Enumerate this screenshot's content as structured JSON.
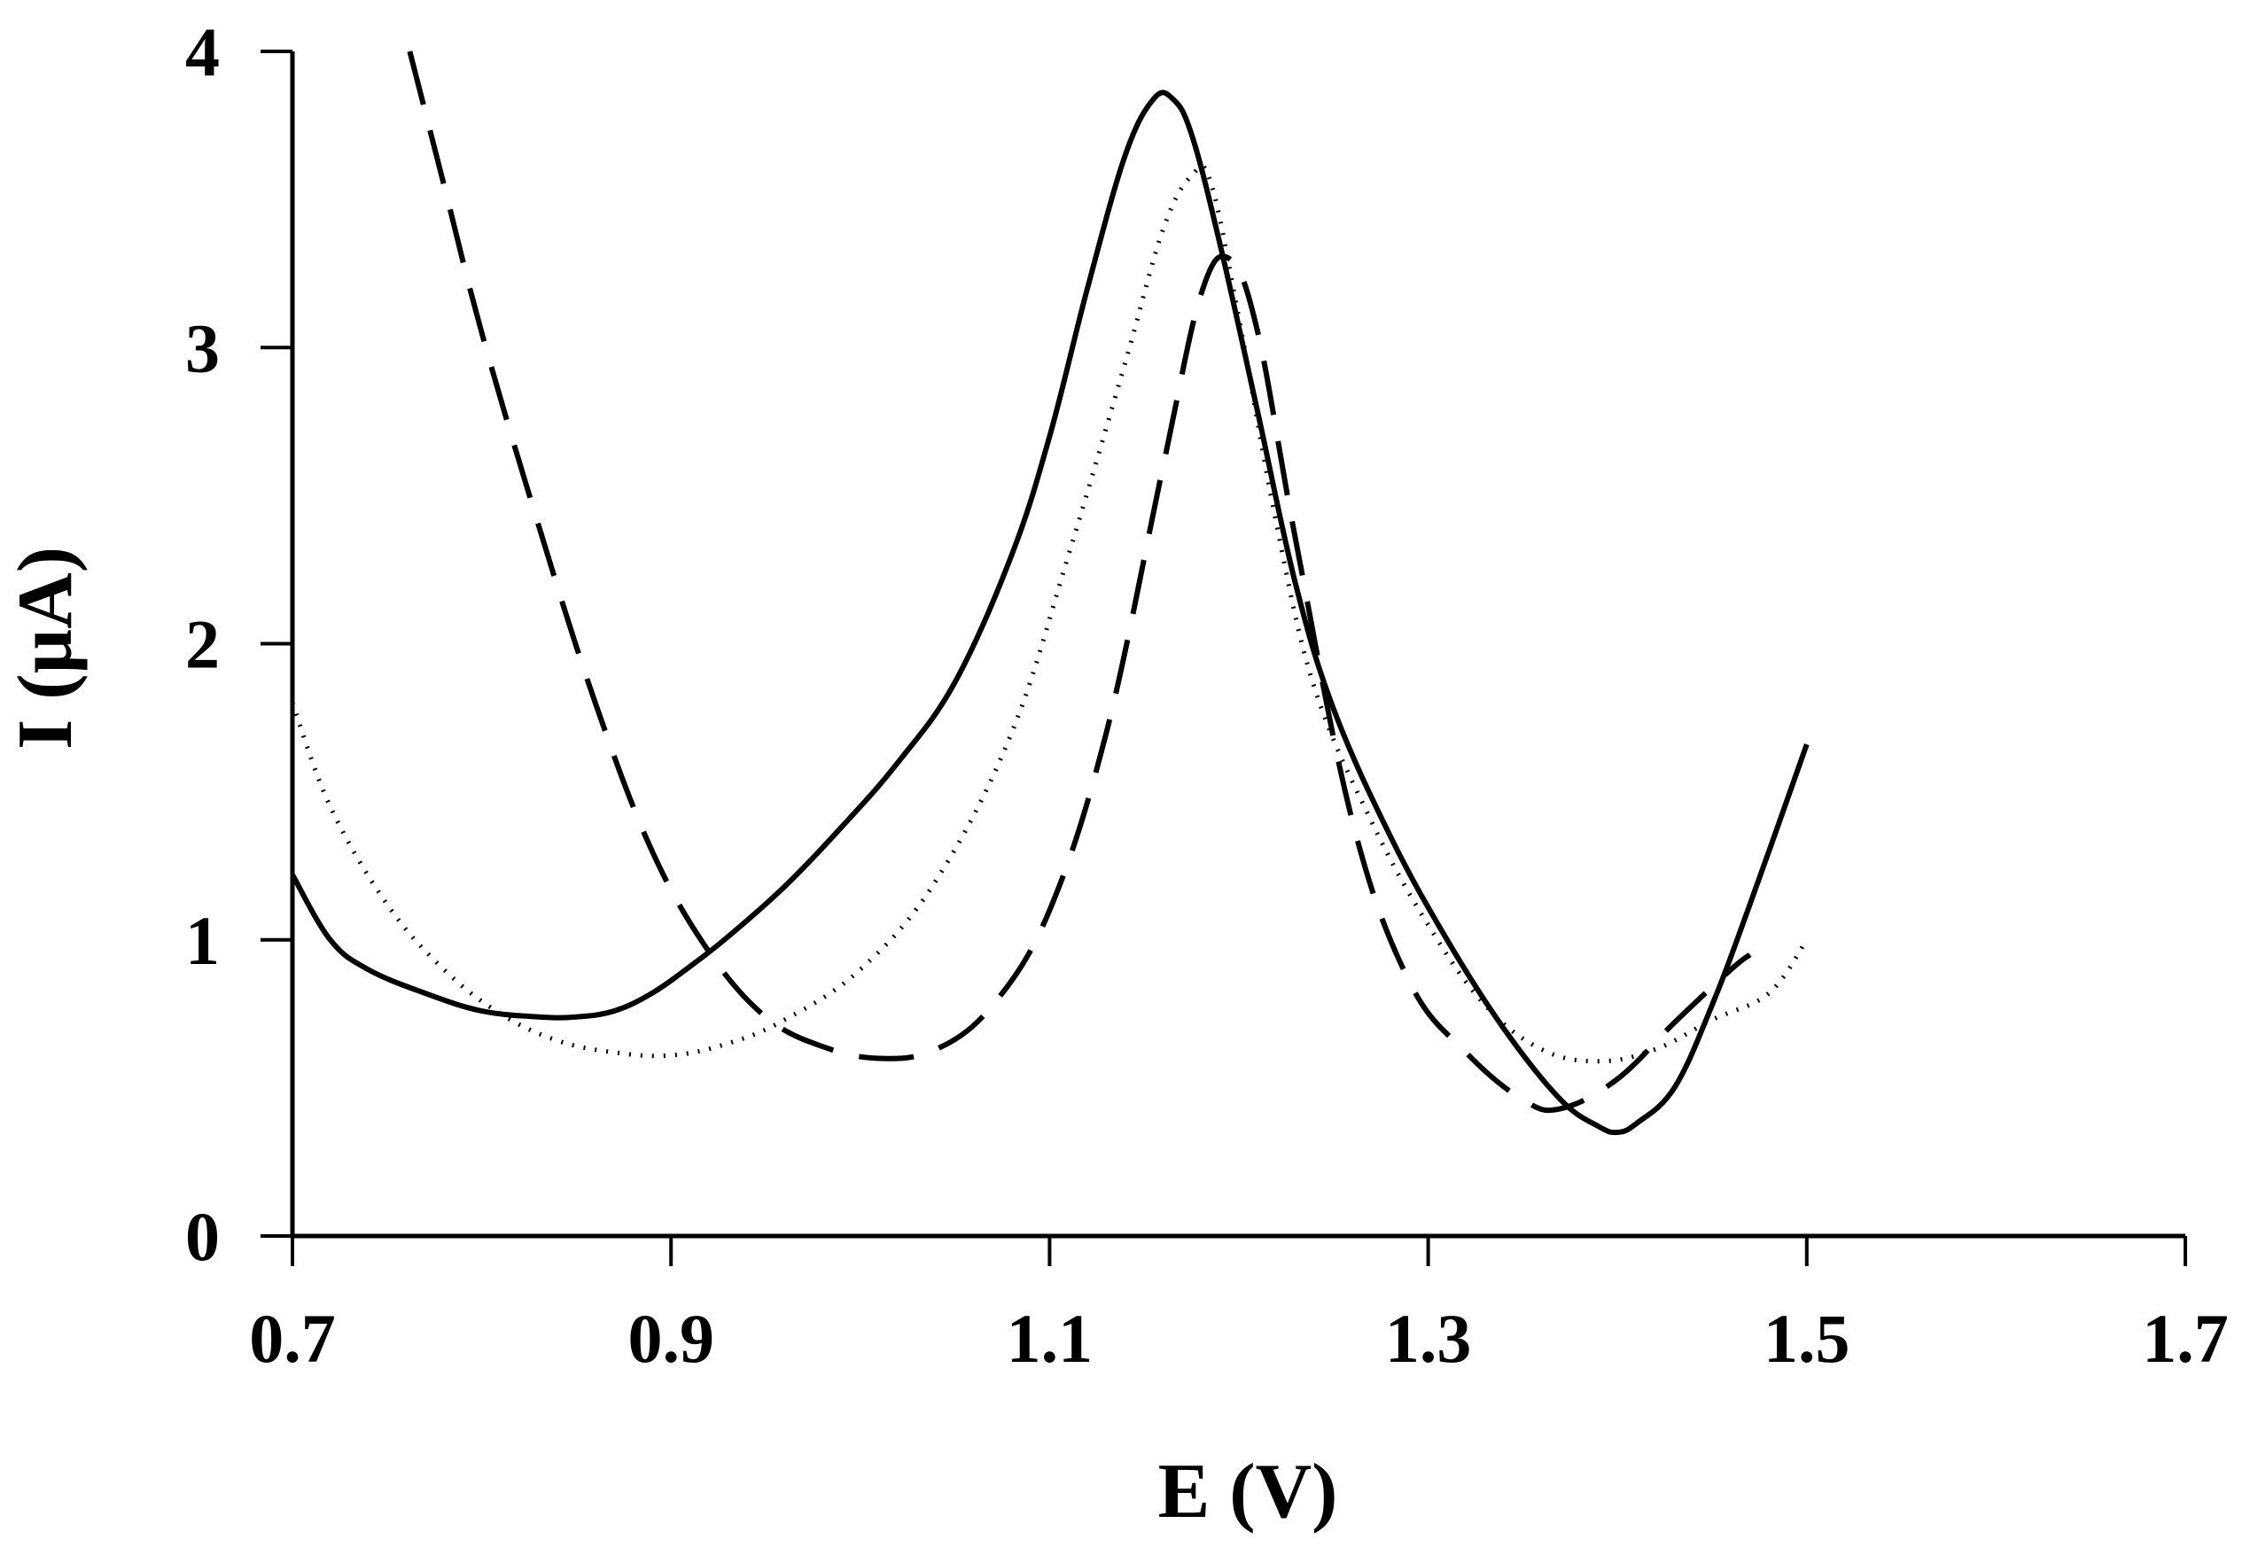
{
  "chart_data": {
    "type": "line",
    "title": "",
    "xlabel": "E (V)",
    "ylabel": "I (µA)",
    "xlim": [
      0.7,
      1.7
    ],
    "ylim": [
      0,
      4
    ],
    "xticks": [
      0.7,
      0.9,
      1.1,
      1.3,
      1.5,
      1.7
    ],
    "xtick_labels": [
      "0.7",
      "0.9",
      "1.1",
      "1.3",
      "1.5",
      "1.7"
    ],
    "yticks": [
      0,
      1,
      2,
      3,
      4
    ],
    "ytick_labels": [
      "0",
      "1",
      "2",
      "3",
      "4"
    ],
    "grid": false,
    "legend": "none",
    "series": [
      {
        "name": "solid",
        "style": "solid",
        "color": "#000000",
        "x": [
          0.7,
          0.72,
          0.74,
          0.77,
          0.8,
          0.83,
          0.85,
          0.87,
          0.89,
          0.91,
          0.93,
          0.96,
          0.99,
          1.02,
          1.05,
          1.08,
          1.1,
          1.12,
          1.14,
          1.155,
          1.165,
          1.175,
          1.19,
          1.21,
          1.23,
          1.25,
          1.28,
          1.31,
          1.34,
          1.37,
          1.39,
          1.4,
          1.41,
          1.43,
          1.45,
          1.47,
          1.5
        ],
        "y": [
          1.22,
          1.0,
          0.9,
          0.82,
          0.76,
          0.74,
          0.74,
          0.76,
          0.82,
          0.91,
          1.01,
          1.18,
          1.38,
          1.6,
          1.87,
          2.3,
          2.7,
          3.2,
          3.65,
          3.84,
          3.84,
          3.72,
          3.35,
          2.78,
          2.2,
          1.78,
          1.35,
          1.0,
          0.7,
          0.46,
          0.37,
          0.35,
          0.38,
          0.5,
          0.78,
          1.12,
          1.66
        ]
      },
      {
        "name": "dotted",
        "style": "dotted",
        "color": "#000000",
        "x": [
          0.7,
          0.72,
          0.75,
          0.78,
          0.81,
          0.84,
          0.87,
          0.9,
          0.93,
          0.96,
          1.0,
          1.04,
          1.08,
          1.11,
          1.14,
          1.16,
          1.175,
          1.185,
          1.2,
          1.22,
          1.24,
          1.27,
          1.3,
          1.33,
          1.36,
          1.39,
          1.42,
          1.45,
          1.48,
          1.5
        ],
        "y": [
          1.8,
          1.45,
          1.12,
          0.9,
          0.75,
          0.66,
          0.62,
          0.61,
          0.65,
          0.73,
          0.9,
          1.2,
          1.7,
          2.3,
          2.95,
          3.4,
          3.58,
          3.56,
          3.1,
          2.4,
          1.85,
          1.4,
          1.05,
          0.78,
          0.63,
          0.59,
          0.63,
          0.73,
          0.82,
          1.0
        ]
      },
      {
        "name": "dashed",
        "style": "dashed",
        "color": "#000000",
        "x": [
          0.762,
          0.78,
          0.8,
          0.83,
          0.86,
          0.89,
          0.92,
          0.95,
          0.98,
          1.01,
          1.04,
          1.07,
          1.1,
          1.13,
          1.16,
          1.18,
          1.195,
          1.21,
          1.23,
          1.26,
          1.29,
          1.32,
          1.35,
          1.37,
          1.4,
          1.43,
          1.46,
          1.47
        ],
        "y": [
          4.0,
          3.55,
          3.05,
          2.4,
          1.8,
          1.3,
          0.96,
          0.74,
          0.64,
          0.6,
          0.63,
          0.78,
          1.1,
          1.7,
          2.6,
          3.18,
          3.3,
          3.05,
          2.35,
          1.4,
          0.86,
          0.62,
          0.46,
          0.43,
          0.53,
          0.72,
          0.9,
          0.95
        ]
      }
    ]
  }
}
